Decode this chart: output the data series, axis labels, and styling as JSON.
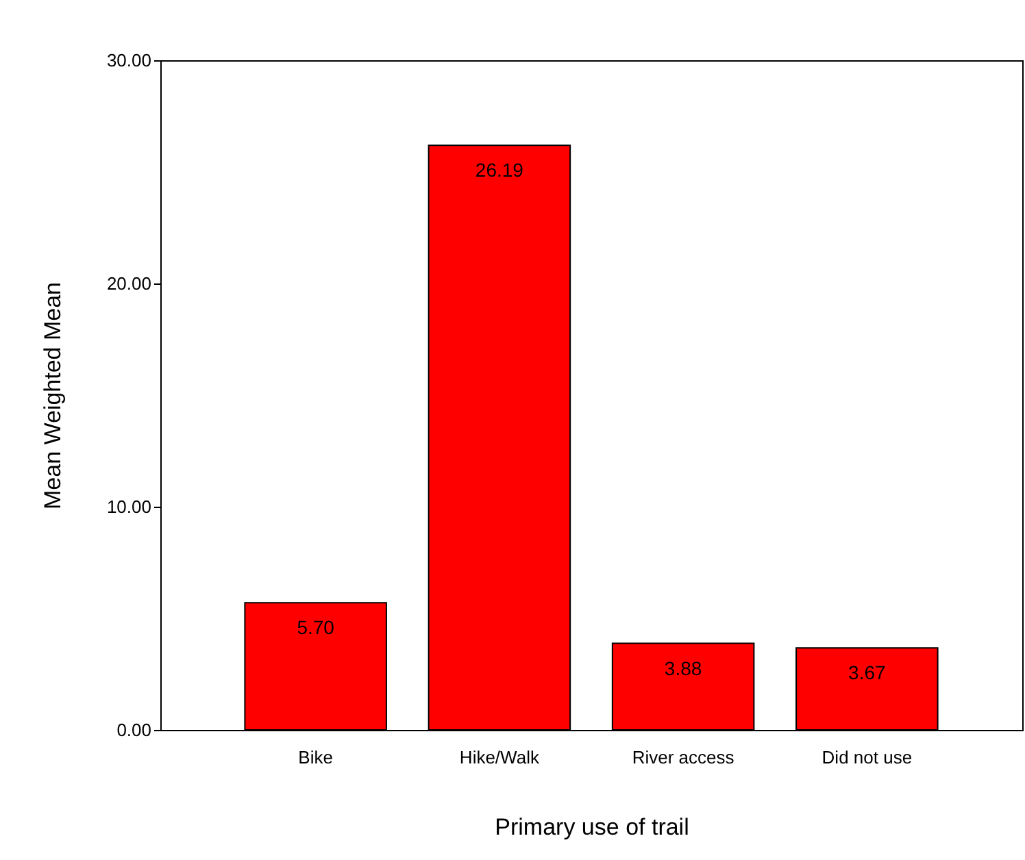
{
  "chart_data": {
    "type": "bar",
    "xlabel": "Primary use of trail",
    "ylabel": "Mean Weighted Mean",
    "categories": [
      "Bike",
      "Hike/Walk",
      "River access",
      "Did not use"
    ],
    "values": [
      5.7,
      26.19,
      3.88,
      3.67
    ],
    "value_labels": [
      "5.70",
      "26.19",
      "3.88",
      "3.67"
    ],
    "color": "#ff0000",
    "ylim": [
      0,
      30
    ],
    "yticks": [
      {
        "value": 0,
        "label": "0.00"
      },
      {
        "value": 10,
        "label": "10.00"
      },
      {
        "value": 20,
        "label": "20.00"
      },
      {
        "value": 30,
        "label": "30.00"
      }
    ],
    "grid": false
  }
}
